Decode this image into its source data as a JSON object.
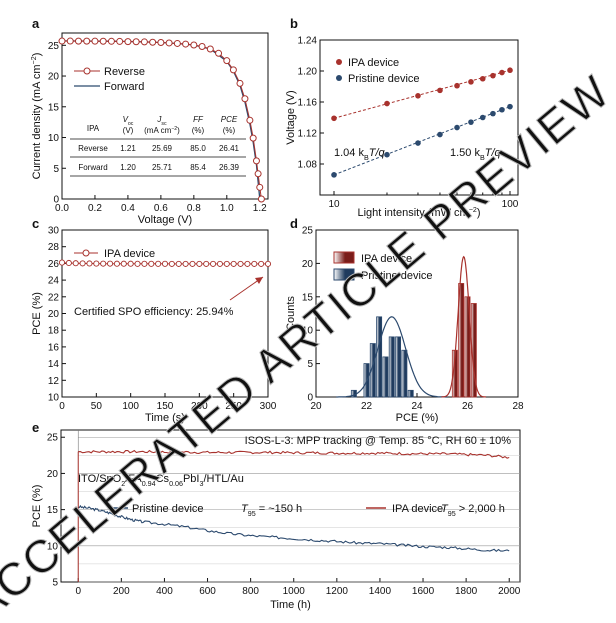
{
  "watermark": "ACCELERATED ARTICLE PREVIEW",
  "colors": {
    "red": "#a8322d",
    "blue": "#2c4a6e",
    "dashRed": "#a8322d",
    "dashBlue": "#2c4a6e"
  },
  "chart_data": [
    {
      "panel": "a",
      "type": "line",
      "xlabel": "Voltage (V)",
      "ylabel": "Current density (mA cm⁻²)",
      "xlim": [
        0,
        1.25
      ],
      "ylim": [
        0,
        27
      ],
      "xticks": [
        "0.0",
        "0.2",
        "0.4",
        "0.6",
        "0.8",
        "1.0",
        "1.2"
      ],
      "xtick_values": [
        0,
        0.2,
        0.4,
        0.6,
        0.8,
        1.0,
        1.2
      ],
      "yticks": [
        "0",
        "5",
        "10",
        "15",
        "20",
        "25"
      ],
      "ytick_values": [
        0,
        5,
        10,
        15,
        20,
        25
      ],
      "legend": [
        "Reverse",
        "Forward"
      ],
      "series": [
        {
          "name": "Reverse",
          "style": "open-circles",
          "x": [
            0,
            0.05,
            0.1,
            0.15,
            0.2,
            0.25,
            0.3,
            0.35,
            0.4,
            0.45,
            0.5,
            0.55,
            0.6,
            0.65,
            0.7,
            0.75,
            0.8,
            0.85,
            0.9,
            0.95,
            1.0,
            1.04,
            1.08,
            1.11,
            1.14,
            1.16,
            1.18,
            1.19,
            1.2,
            1.21
          ],
          "y": [
            25.69,
            25.69,
            25.68,
            25.68,
            25.67,
            25.66,
            25.65,
            25.63,
            25.6,
            25.58,
            25.55,
            25.5,
            25.45,
            25.38,
            25.3,
            25.2,
            25.05,
            24.8,
            24.4,
            23.7,
            22.5,
            21.0,
            18.8,
            16.3,
            12.8,
            9.9,
            6.2,
            4.1,
            1.9,
            0
          ]
        },
        {
          "name": "Forward",
          "style": "line",
          "x": [
            0,
            0.1,
            0.2,
            0.3,
            0.4,
            0.5,
            0.6,
            0.7,
            0.8,
            0.9,
            1.0,
            1.04,
            1.08,
            1.11,
            1.14,
            1.16,
            1.18,
            1.2
          ],
          "y": [
            25.71,
            25.7,
            25.68,
            25.66,
            25.62,
            25.56,
            25.46,
            25.3,
            25.05,
            24.4,
            22.4,
            20.8,
            18.5,
            15.8,
            12.2,
            9.2,
            5.5,
            0
          ]
        }
      ],
      "table": {
        "corner": "IPA",
        "headers": [
          [
            "V",
            "oc",
            "(V)"
          ],
          [
            "J",
            "sc",
            "(mA cm⁻²)"
          ],
          [
            "FF",
            "",
            "(%)"
          ],
          [
            "PCE",
            "",
            "(%)"
          ]
        ],
        "rows": [
          [
            "Reverse",
            "1.21",
            "25.69",
            "85.0",
            "26.41"
          ],
          [
            "Forward",
            "1.20",
            "25.71",
            "85.4",
            "26.39"
          ]
        ]
      }
    },
    {
      "panel": "b",
      "type": "scatter",
      "xlabel": "Light intensity (mW cm⁻²)",
      "ylabel": "Voltage (V)",
      "xscale": "log",
      "xlim": [
        10,
        100
      ],
      "ylim": [
        1.04,
        1.24
      ],
      "xticks": [
        "10",
        "100"
      ],
      "xtick_values": [
        10,
        100
      ],
      "yticks": [
        "1.08",
        "1.12",
        "1.16",
        "1.20",
        "1.24"
      ],
      "ytick_values": [
        1.08,
        1.12,
        1.16,
        1.2,
        1.24
      ],
      "series": [
        {
          "name": "IPA device",
          "x": [
            10,
            20,
            30,
            40,
            50,
            60,
            70,
            80,
            90,
            100
          ],
          "y": [
            1.139,
            1.158,
            1.168,
            1.175,
            1.181,
            1.186,
            1.19,
            1.194,
            1.198,
            1.201
          ]
        },
        {
          "name": "Pristine device",
          "x": [
            10,
            20,
            30,
            40,
            50,
            60,
            70,
            80,
            90,
            100
          ],
          "y": [
            1.066,
            1.092,
            1.107,
            1.118,
            1.127,
            1.134,
            1.14,
            1.145,
            1.15,
            1.154
          ]
        }
      ],
      "annotations": [
        "1.04 k",
        "B",
        "T/q",
        "1.50 k",
        "B",
        "T/q"
      ]
    },
    {
      "panel": "c",
      "type": "line",
      "xlabel": "Time (s)",
      "ylabel": "PCE (%)",
      "xlim": [
        0,
        300
      ],
      "ylim": [
        10,
        30
      ],
      "xticks": [
        "0",
        "50",
        "100",
        "150",
        "200",
        "250",
        "300"
      ],
      "xtick_values": [
        0,
        50,
        100,
        150,
        200,
        250,
        300
      ],
      "yticks": [
        "10",
        "12",
        "14",
        "16",
        "18",
        "20",
        "22",
        "24",
        "26",
        "28",
        "30"
      ],
      "ytick_values": [
        10,
        12,
        14,
        16,
        18,
        20,
        22,
        24,
        26,
        28,
        30
      ],
      "legend": [
        "IPA device"
      ],
      "series": [
        {
          "name": "IPA device",
          "x": [
            0,
            10,
            20,
            30,
            40,
            50,
            60,
            70,
            80,
            90,
            100,
            110,
            120,
            130,
            140,
            150,
            160,
            170,
            180,
            190,
            200,
            210,
            220,
            230,
            240,
            250,
            260,
            270,
            280,
            290,
            300
          ],
          "y": [
            26.1,
            26.05,
            26.02,
            26.0,
            25.99,
            25.98,
            25.97,
            25.97,
            25.96,
            25.96,
            25.96,
            25.95,
            25.95,
            25.95,
            25.95,
            25.95,
            25.94,
            25.94,
            25.94,
            25.94,
            25.94,
            25.94,
            25.94,
            25.94,
            25.94,
            25.94,
            25.94,
            25.94,
            25.94,
            25.94,
            25.94
          ]
        }
      ],
      "annotation": "Certified SPO efficiency: 25.94%"
    },
    {
      "panel": "d",
      "type": "bar",
      "xlabel": "PCE (%)",
      "ylabel": "Counts",
      "xlim": [
        20,
        28
      ],
      "ylim": [
        0,
        25
      ],
      "xticks": [
        "20",
        "22",
        "24",
        "26",
        "28"
      ],
      "xtick_values": [
        20,
        22,
        24,
        26,
        28
      ],
      "yticks": [
        "0",
        "5",
        "10",
        "15",
        "20",
        "25"
      ],
      "ytick_values": [
        0,
        5,
        10,
        15,
        20,
        25
      ],
      "series": [
        {
          "name": "IPA device",
          "bins": [
            25.5,
            25.75,
            26.0,
            26.25
          ],
          "values": [
            7,
            17,
            15,
            14
          ],
          "fit_mean": 25.85,
          "fit_sd": 0.22,
          "fit_peak": 21
        },
        {
          "name": "Pristine device",
          "bins": [
            21.5,
            21.75,
            22.0,
            22.25,
            22.5,
            22.75,
            23.0,
            23.25,
            23.5,
            23.75
          ],
          "values": [
            1,
            0,
            5,
            8,
            12,
            6,
            9,
            9,
            7,
            1
          ],
          "fit_mean": 23.0,
          "fit_sd": 0.55,
          "fit_peak": 12
        }
      ]
    },
    {
      "panel": "e",
      "type": "line",
      "xlabel": "Time (h)",
      "ylabel": "PCE (%)",
      "xlim": [
        -80,
        2050
      ],
      "ylim": [
        5,
        26
      ],
      "xticks": [
        "0",
        "200",
        "400",
        "600",
        "800",
        "1000",
        "1200",
        "1400",
        "1600",
        "1800",
        "2000"
      ],
      "xtick_values": [
        0,
        200,
        400,
        600,
        800,
        1000,
        1200,
        1400,
        1600,
        1800,
        2000
      ],
      "yticks": [
        "5",
        "10",
        "15",
        "20",
        "25"
      ],
      "ytick_values": [
        5,
        10,
        15,
        20,
        25
      ],
      "title": "ISOS-L-3:  MPP tracking @ Temp. 85 °C, RH 60 ± 10%",
      "stack": [
        "ITO/SnO",
        "2",
        "/FA",
        "0.94",
        "Cs",
        "0.06",
        "PbI",
        "3",
        "/HTL/Au"
      ],
      "series": [
        {
          "name": "Pristine device",
          "t95": "~150 h",
          "x": [
            0,
            50,
            100,
            150,
            200,
            250,
            300,
            400,
            500,
            600,
            700,
            800,
            900,
            1000,
            1100,
            1200,
            1300,
            1400,
            1500,
            1600,
            1700,
            1800,
            1900,
            2000
          ],
          "y": [
            15.4,
            15.2,
            14.9,
            14.5,
            14.0,
            13.6,
            13.3,
            13.0,
            12.6,
            12.1,
            11.7,
            11.4,
            11.2,
            11.0,
            10.8,
            10.6,
            10.4,
            10.3,
            10.1,
            9.9,
            9.8,
            9.6,
            9.4,
            9.3
          ]
        },
        {
          "name": "IPA device",
          "t95": "> 2,000 h",
          "x": [
            0,
            100,
            200,
            300,
            400,
            500,
            600,
            700,
            800,
            900,
            1000,
            1100,
            1200,
            1300,
            1400,
            1500,
            1600,
            1700,
            1800,
            1900,
            2000
          ],
          "y": [
            23.0,
            23.0,
            23.0,
            23.0,
            22.95,
            22.95,
            22.9,
            22.9,
            22.9,
            22.9,
            22.85,
            22.85,
            22.8,
            22.8,
            22.8,
            22.75,
            22.7,
            22.7,
            22.6,
            22.5,
            22.2
          ]
        }
      ],
      "legend_text": [
        "Pristine device",
        "T",
        "95",
        " = ~150 h",
        "IPA device",
        "T",
        "95",
        " > 2,000 h"
      ]
    }
  ]
}
